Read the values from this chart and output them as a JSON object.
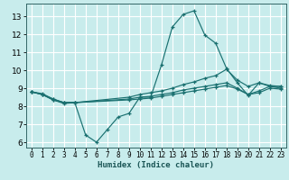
{
  "xlabel": "Humidex (Indice chaleur)",
  "bg_color": "#c8ecec",
  "grid_color": "#ffffff",
  "line_color": "#1a7070",
  "xlim": [
    -0.5,
    23.5
  ],
  "ylim": [
    5.7,
    13.7
  ],
  "xticks": [
    0,
    1,
    2,
    3,
    4,
    5,
    6,
    7,
    8,
    9,
    10,
    11,
    12,
    13,
    14,
    15,
    16,
    17,
    18,
    19,
    20,
    21,
    22,
    23
  ],
  "yticks": [
    6,
    7,
    8,
    9,
    10,
    11,
    12,
    13
  ],
  "lines": [
    {
      "x": [
        0,
        1,
        2,
        3,
        4,
        5,
        6,
        7,
        8,
        9,
        10,
        11,
        12,
        13,
        14,
        15,
        16,
        17,
        18,
        19,
        20,
        21,
        22,
        23
      ],
      "y": [
        8.8,
        8.65,
        8.35,
        8.15,
        8.2,
        6.4,
        6.0,
        6.7,
        7.4,
        7.6,
        8.5,
        8.5,
        10.3,
        12.4,
        13.1,
        13.3,
        11.95,
        11.5,
        10.1,
        9.3,
        8.6,
        9.3,
        9.1,
        9.1
      ]
    },
    {
      "x": [
        0,
        1,
        2,
        3,
        4,
        9,
        10,
        11,
        12,
        13,
        14,
        15,
        16,
        17,
        18,
        19,
        20,
        21,
        22,
        23
      ],
      "y": [
        8.8,
        8.65,
        8.35,
        8.2,
        8.2,
        8.5,
        8.65,
        8.75,
        8.85,
        9.0,
        9.2,
        9.35,
        9.55,
        9.7,
        10.05,
        9.45,
        9.1,
        9.3,
        9.15,
        9.1
      ]
    },
    {
      "x": [
        0,
        1,
        2,
        3,
        4,
        9,
        10,
        11,
        12,
        13,
        14,
        15,
        16,
        17,
        18,
        19,
        20,
        21,
        22,
        23
      ],
      "y": [
        8.8,
        8.65,
        8.4,
        8.2,
        8.2,
        8.4,
        8.5,
        8.55,
        8.65,
        8.75,
        8.9,
        9.0,
        9.1,
        9.2,
        9.3,
        9.0,
        8.65,
        8.85,
        9.1,
        9.0
      ]
    },
    {
      "x": [
        0,
        1,
        2,
        3,
        4,
        9,
        10,
        11,
        12,
        13,
        14,
        15,
        16,
        17,
        18,
        19,
        20,
        21,
        22,
        23
      ],
      "y": [
        8.8,
        8.7,
        8.4,
        8.2,
        8.2,
        8.35,
        8.4,
        8.45,
        8.55,
        8.65,
        8.75,
        8.85,
        8.95,
        9.05,
        9.15,
        8.95,
        8.65,
        8.75,
        9.0,
        8.95
      ]
    }
  ]
}
